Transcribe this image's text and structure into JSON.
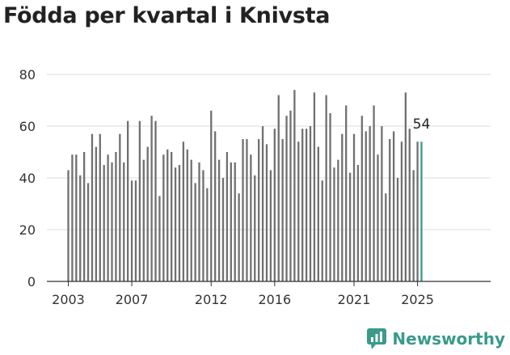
{
  "title": "Födda per kvartal i Knivsta",
  "brand": {
    "name": "Newsworthy",
    "icon": "newsworthy-logo-icon",
    "color": "#3a9a8c"
  },
  "colors": {
    "bar": "#707070",
    "highlight": "#3a9a8c",
    "grid": "#dddddd",
    "axis": "#333333"
  },
  "chart_data": {
    "type": "bar",
    "title": "Födda per kvartal i Knivsta",
    "xlabel": "",
    "ylabel": "",
    "ylim": [
      0,
      80
    ],
    "yticks": [
      0,
      20,
      40,
      60,
      80
    ],
    "grid": true,
    "x_start": {
      "year": 2003,
      "quarter": 1
    },
    "xtick_labels": [
      "2003",
      "2007",
      "2012",
      "2016",
      "2021",
      "2025"
    ],
    "xtick_indices": [
      0,
      16,
      36,
      52,
      72,
      88
    ],
    "values": [
      43,
      49,
      49,
      41,
      50,
      38,
      57,
      52,
      57,
      45,
      49,
      46,
      50,
      57,
      46,
      62,
      39,
      39,
      62,
      47,
      52,
      64,
      62,
      33,
      49,
      51,
      50,
      44,
      45,
      54,
      51,
      47,
      38,
      46,
      43,
      36,
      66,
      58,
      47,
      40,
      50,
      46,
      46,
      34,
      55,
      55,
      49,
      41,
      55,
      60,
      53,
      43,
      59,
      72,
      55,
      64,
      66,
      74,
      54,
      59,
      59,
      60,
      73,
      52,
      39,
      72,
      65,
      44,
      47,
      57,
      68,
      42,
      57,
      45,
      64,
      58,
      60,
      68,
      49,
      60,
      34,
      55,
      58,
      40,
      54,
      73,
      59,
      43,
      54,
      54
    ],
    "highlight_index": 89,
    "value_label": "54"
  }
}
